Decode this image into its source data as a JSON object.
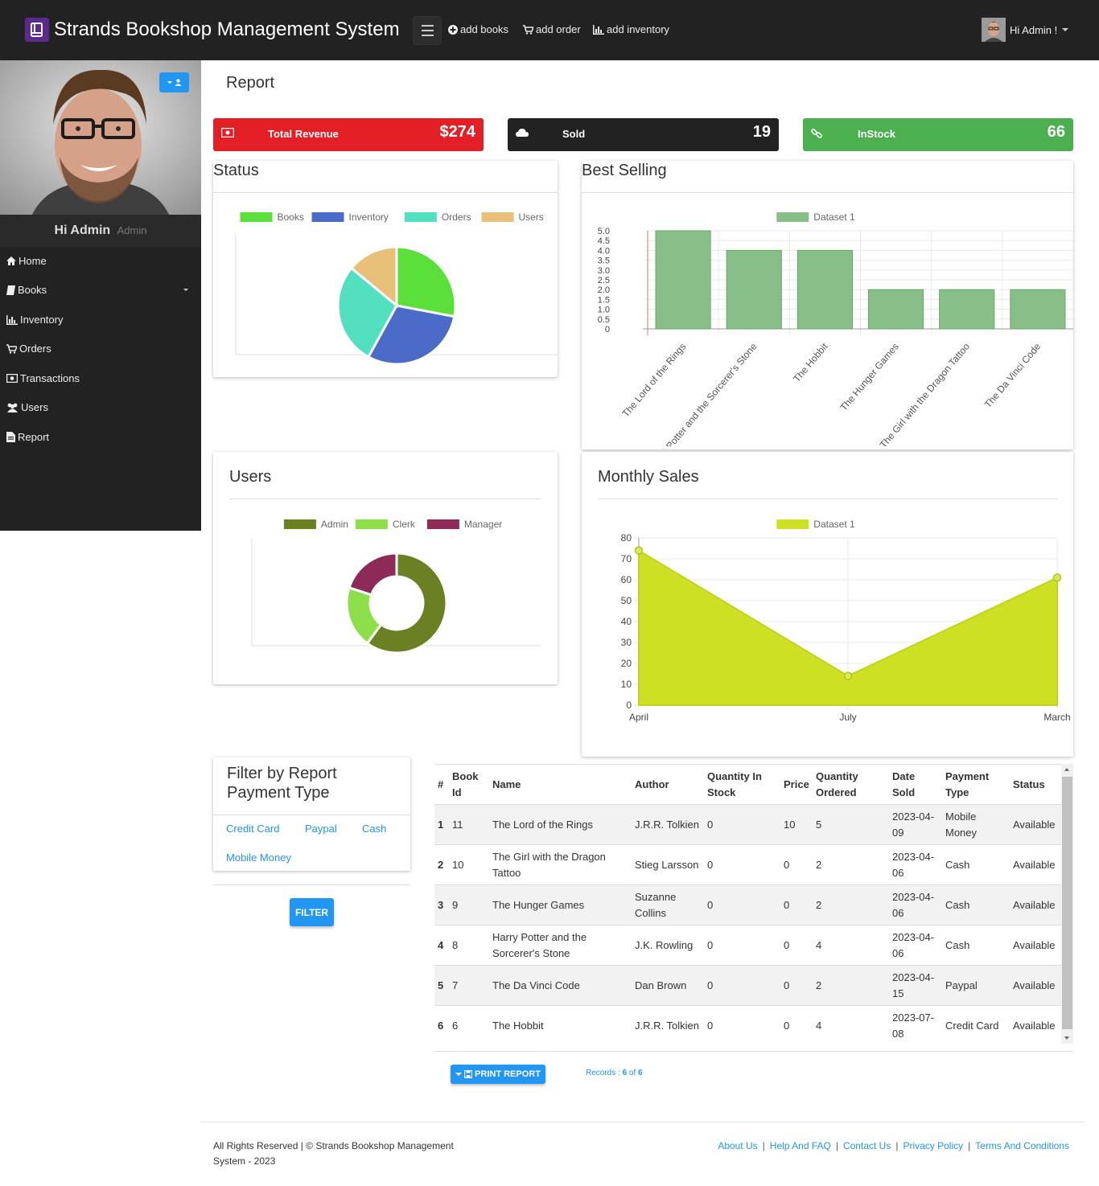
{
  "app": {
    "title": "Strands Bookshop Management System",
    "nav_links": [
      "add books",
      "add order",
      "add inventory"
    ],
    "user_greeting": "Hi Admin !"
  },
  "sidebar": {
    "name": "Hi Admin",
    "role": "Admin",
    "items": [
      "Home",
      "Books",
      "Inventory",
      "Orders",
      "Transactions",
      "Users",
      "Report"
    ]
  },
  "page": {
    "title": "Report"
  },
  "stats": {
    "revenue": {
      "label": "Total Revenue",
      "value": "$274",
      "color": "#e31e24"
    },
    "sold": {
      "label": "Sold",
      "value": "19",
      "color": "#222222"
    },
    "instock": {
      "label": "InStock",
      "value": "66",
      "color": "#4caf50"
    }
  },
  "cards": {
    "status": "Status",
    "best_selling": "Best Selling",
    "users": "Users",
    "monthly_sales": "Monthly Sales"
  },
  "chart_data": [
    {
      "type": "pie",
      "categories": [
        "Books",
        "Inventory",
        "Orders",
        "Users"
      ],
      "values": [
        28,
        30,
        28,
        14
      ],
      "colors": [
        "#5be03a",
        "#4a6bc8",
        "#52e0c0",
        "#e8c07a"
      ],
      "legend": "top"
    },
    {
      "type": "bar",
      "categories": [
        "The Lord of the Rings",
        "Harry Potter and the Sorcerer's Stone",
        "The Hobbit",
        "The Hunger Games",
        "The Girl with the Dragon Tattoo",
        "The Da Vinci Code"
      ],
      "series": [
        {
          "name": "Dataset 1",
          "values": [
            5,
            4,
            4,
            2,
            2,
            2
          ]
        }
      ],
      "ylim": [
        0,
        5
      ],
      "yticks": [
        "0",
        "0.5",
        "1.0",
        "1.5",
        "2.0",
        "2.5",
        "3.0",
        "3.5",
        "4.0",
        "4.5",
        "5.0"
      ],
      "color": "#88bf88",
      "grid": true,
      "legend": "top"
    },
    {
      "type": "doughnut",
      "categories": [
        "Admin",
        "Clerk",
        "Manager"
      ],
      "values": [
        60,
        20,
        20
      ],
      "colors": [
        "#6b8023",
        "#8de04a",
        "#8e2a58"
      ],
      "legend": "top"
    },
    {
      "type": "area",
      "categories": [
        "April",
        "July",
        "March"
      ],
      "series": [
        {
          "name": "Dataset 1",
          "values": [
            74,
            14,
            61
          ]
        }
      ],
      "ylim": [
        0,
        80
      ],
      "yticks": [
        "0",
        "10",
        "20",
        "30",
        "40",
        "50",
        "60",
        "70",
        "80"
      ],
      "color": "#cde024",
      "grid": true,
      "legend": "top"
    }
  ],
  "filter": {
    "title": "Filter by Report Payment Type",
    "options": [
      "Credit Card",
      "Paypal",
      "Cash",
      "Mobile Money"
    ],
    "button": "FILTER"
  },
  "table": {
    "headers": [
      "#",
      "Book Id",
      "Name",
      "Author",
      "Quantity In Stock",
      "Price",
      "Quantity Ordered",
      "Date Sold",
      "Payment Type",
      "Status"
    ],
    "rows": [
      [
        "1",
        "11",
        "The Lord of the Rings",
        "J.R.R. Tolkien",
        "0",
        "10",
        "5",
        "2023-04-09",
        "Mobile Money",
        "Available"
      ],
      [
        "2",
        "10",
        "The Girl with the Dragon Tattoo",
        "Stieg Larsson",
        "0",
        "0",
        "2",
        "2023-04-06",
        "Cash",
        "Available"
      ],
      [
        "3",
        "9",
        "The Hunger Games",
        "Suzanne Collins",
        "0",
        "0",
        "2",
        "2023-04-06",
        "Cash",
        "Available"
      ],
      [
        "4",
        "8",
        "Harry Potter and the Sorcerer's Stone",
        "J.K. Rowling",
        "0",
        "0",
        "4",
        "2023-04-06",
        "Cash",
        "Available"
      ],
      [
        "5",
        "7",
        "The Da Vinci Code",
        "Dan Brown",
        "0",
        "0",
        "2",
        "2023-04-15",
        "Paypal",
        "Available"
      ],
      [
        "6",
        "6",
        "The Hobbit",
        "J.R.R. Tolkien",
        "0",
        "0",
        "4",
        "2023-07-08",
        "Credit Card",
        "Available"
      ]
    ]
  },
  "actions": {
    "print": "PRINT REPORT",
    "records_label": "Records : ",
    "records_shown": "6",
    "records_of": " of ",
    "records_total": "6"
  },
  "footer": {
    "copyright": "All Rights Reserved | © Strands Bookshop Management System - 2023",
    "links": [
      "About Us",
      "Help And FAQ",
      "Contact Us",
      "Privacy Policy",
      "Terms And Conditions"
    ]
  }
}
